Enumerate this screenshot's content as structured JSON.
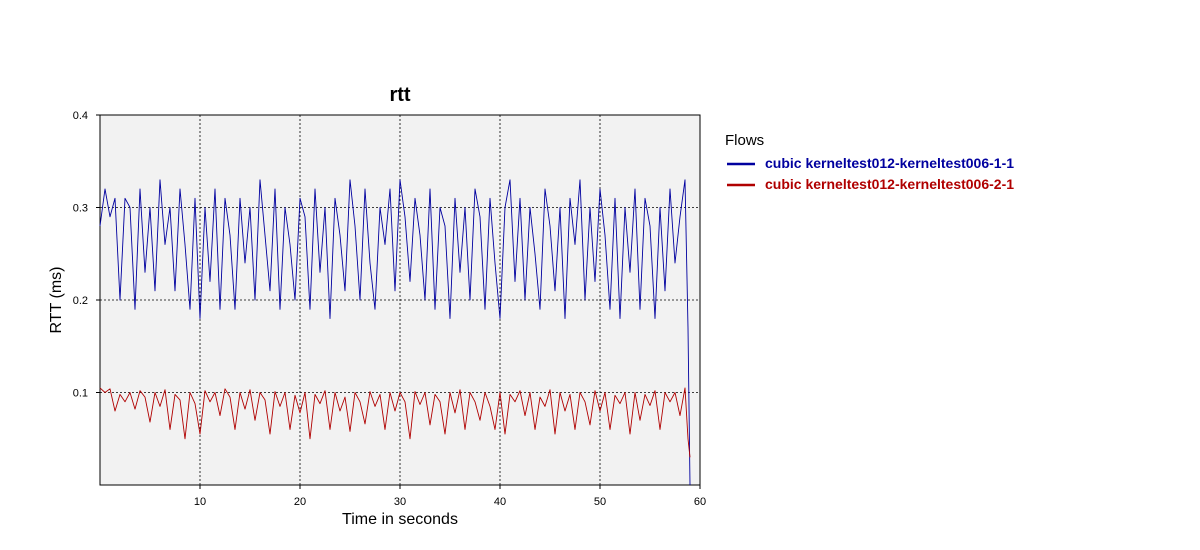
{
  "chart_data": {
    "type": "line",
    "title": "rtt",
    "xlabel": "Time in seconds",
    "ylabel": "RTT (ms)",
    "xlim": [
      0,
      60
    ],
    "ylim": [
      0,
      0.4
    ],
    "x_ticks": [
      10,
      20,
      30,
      40,
      50,
      60
    ],
    "y_ticks": [
      0.1,
      0.2,
      0.3,
      0.4
    ],
    "x_tick_labels": [
      "10",
      "20",
      "30",
      "40",
      "50",
      "60"
    ],
    "y_tick_labels": [
      "0.1",
      "0.2",
      "0.3",
      "0.4"
    ],
    "grid": true,
    "legend_title": "Flows",
    "legend_position": "right",
    "series": [
      {
        "name": "cubic kerneltest012-kerneltest006-1-1",
        "color": "#00009f",
        "x": [
          0.0,
          0.5,
          1.0,
          1.5,
          2.0,
          2.5,
          3.0,
          3.5,
          4.0,
          4.5,
          5.0,
          5.5,
          6.0,
          6.5,
          7.0,
          7.5,
          8.0,
          8.5,
          9.0,
          9.5,
          10.0,
          10.5,
          11.0,
          11.5,
          12.0,
          12.5,
          13.0,
          13.5,
          14.0,
          14.5,
          15.0,
          15.5,
          16.0,
          16.5,
          17.0,
          17.5,
          18.0,
          18.5,
          19.0,
          19.5,
          20.0,
          20.5,
          21.0,
          21.5,
          22.0,
          22.5,
          23.0,
          23.5,
          24.0,
          24.5,
          25.0,
          25.5,
          26.0,
          26.5,
          27.0,
          27.5,
          28.0,
          28.5,
          29.0,
          29.5,
          30.0,
          30.5,
          31.0,
          31.5,
          32.0,
          32.5,
          33.0,
          33.5,
          34.0,
          34.5,
          35.0,
          35.5,
          36.0,
          36.5,
          37.0,
          37.5,
          38.0,
          38.5,
          39.0,
          39.5,
          40.0,
          40.5,
          41.0,
          41.5,
          42.0,
          42.5,
          43.0,
          43.5,
          44.0,
          44.5,
          45.0,
          45.5,
          46.0,
          46.5,
          47.0,
          47.5,
          48.0,
          48.5,
          49.0,
          49.5,
          50.0,
          50.5,
          51.0,
          51.5,
          52.0,
          52.5,
          53.0,
          53.5,
          54.0,
          54.5,
          55.0,
          55.5,
          56.0,
          56.5,
          57.0,
          57.5,
          58.0,
          58.5,
          58.8,
          59.0
        ],
        "y": [
          0.28,
          0.32,
          0.29,
          0.31,
          0.2,
          0.31,
          0.3,
          0.19,
          0.32,
          0.23,
          0.3,
          0.21,
          0.33,
          0.26,
          0.3,
          0.21,
          0.32,
          0.26,
          0.19,
          0.31,
          0.18,
          0.3,
          0.22,
          0.32,
          0.19,
          0.31,
          0.27,
          0.19,
          0.31,
          0.24,
          0.3,
          0.2,
          0.33,
          0.27,
          0.21,
          0.32,
          0.19,
          0.3,
          0.26,
          0.2,
          0.31,
          0.29,
          0.19,
          0.32,
          0.23,
          0.3,
          0.18,
          0.31,
          0.27,
          0.21,
          0.33,
          0.28,
          0.2,
          0.32,
          0.24,
          0.19,
          0.3,
          0.26,
          0.32,
          0.21,
          0.33,
          0.29,
          0.22,
          0.31,
          0.27,
          0.2,
          0.32,
          0.19,
          0.3,
          0.28,
          0.18,
          0.31,
          0.23,
          0.3,
          0.2,
          0.32,
          0.29,
          0.19,
          0.31,
          0.24,
          0.18,
          0.3,
          0.33,
          0.22,
          0.31,
          0.2,
          0.3,
          0.25,
          0.19,
          0.32,
          0.28,
          0.21,
          0.3,
          0.18,
          0.31,
          0.26,
          0.33,
          0.2,
          0.3,
          0.22,
          0.32,
          0.27,
          0.19,
          0.31,
          0.18,
          0.3,
          0.23,
          0.32,
          0.19,
          0.31,
          0.28,
          0.18,
          0.3,
          0.21,
          0.32,
          0.24,
          0.29,
          0.33,
          0.17,
          0.0
        ]
      },
      {
        "name": "cubic kerneltest012-kerneltest006-2-1",
        "color": "#b00000",
        "x": [
          0.0,
          0.5,
          1.0,
          1.5,
          2.0,
          2.5,
          3.0,
          3.5,
          4.0,
          4.5,
          5.0,
          5.5,
          6.0,
          6.5,
          7.0,
          7.5,
          8.0,
          8.5,
          9.0,
          9.5,
          10.0,
          10.5,
          11.0,
          11.5,
          12.0,
          12.5,
          13.0,
          13.5,
          14.0,
          14.5,
          15.0,
          15.5,
          16.0,
          16.5,
          17.0,
          17.5,
          18.0,
          18.5,
          19.0,
          19.5,
          20.0,
          20.5,
          21.0,
          21.5,
          22.0,
          22.5,
          23.0,
          23.5,
          24.0,
          24.5,
          25.0,
          25.5,
          26.0,
          26.5,
          27.0,
          27.5,
          28.0,
          28.5,
          29.0,
          29.5,
          30.0,
          30.5,
          31.0,
          31.5,
          32.0,
          32.5,
          33.0,
          33.5,
          34.0,
          34.5,
          35.0,
          35.5,
          36.0,
          36.5,
          37.0,
          37.5,
          38.0,
          38.5,
          39.0,
          39.5,
          40.0,
          40.5,
          41.0,
          41.5,
          42.0,
          42.5,
          43.0,
          43.5,
          44.0,
          44.5,
          45.0,
          45.5,
          46.0,
          46.5,
          47.0,
          47.5,
          48.0,
          48.5,
          49.0,
          49.5,
          50.0,
          50.5,
          51.0,
          51.5,
          52.0,
          52.5,
          53.0,
          53.5,
          54.0,
          54.5,
          55.0,
          55.5,
          56.0,
          56.5,
          57.0,
          57.5,
          58.0,
          58.5,
          58.8,
          59.0
        ],
        "y": [
          0.105,
          0.1,
          0.104,
          0.08,
          0.098,
          0.09,
          0.1,
          0.082,
          0.102,
          0.095,
          0.068,
          0.1,
          0.085,
          0.103,
          0.06,
          0.098,
          0.092,
          0.05,
          0.1,
          0.088,
          0.055,
          0.102,
          0.09,
          0.1,
          0.075,
          0.104,
          0.095,
          0.06,
          0.1,
          0.082,
          0.103,
          0.07,
          0.1,
          0.092,
          0.055,
          0.101,
          0.085,
          0.1,
          0.06,
          0.097,
          0.078,
          0.1,
          0.05,
          0.098,
          0.088,
          0.102,
          0.06,
          0.1,
          0.08,
          0.095,
          0.058,
          0.1,
          0.09,
          0.066,
          0.101,
          0.085,
          0.098,
          0.06,
          0.1,
          0.08,
          0.1,
          0.09,
          0.05,
          0.101,
          0.087,
          0.1,
          0.065,
          0.098,
          0.09,
          0.055,
          0.1,
          0.078,
          0.103,
          0.06,
          0.1,
          0.09,
          0.07,
          0.1,
          0.085,
          0.06,
          0.1,
          0.055,
          0.098,
          0.09,
          0.102,
          0.075,
          0.1,
          0.06,
          0.095,
          0.085,
          0.103,
          0.055,
          0.1,
          0.08,
          0.098,
          0.06,
          0.1,
          0.09,
          0.065,
          0.102,
          0.08,
          0.1,
          0.06,
          0.097,
          0.088,
          0.1,
          0.055,
          0.1,
          0.07,
          0.098,
          0.086,
          0.102,
          0.06,
          0.1,
          0.09,
          0.1,
          0.075,
          0.105,
          0.05,
          0.03
        ]
      }
    ]
  }
}
